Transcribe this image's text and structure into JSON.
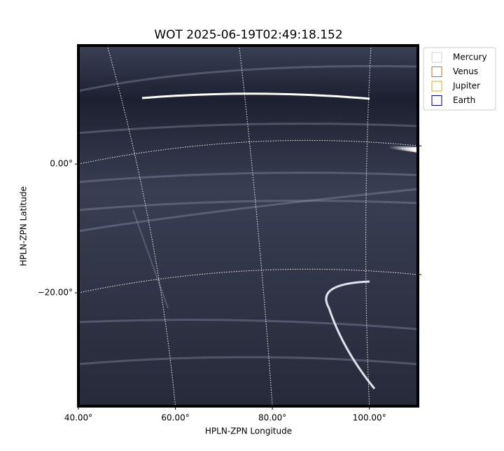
{
  "chart_data": {
    "type": "image",
    "title": "WOT 2025-06-19T02:49:18.152",
    "xlabel": "HPLN-ZPN Longitude",
    "ylabel": "HPLN-ZPN Latitude",
    "xlim": [
      40,
      110
    ],
    "ylim": [
      -37.6,
      18.4
    ],
    "xticks": [
      {
        "value": 40,
        "label": "40.00°"
      },
      {
        "value": 60,
        "label": "60.00°"
      },
      {
        "value": 80,
        "label": "80.00°"
      },
      {
        "value": 100,
        "label": "100.00°"
      }
    ],
    "yticks": [
      {
        "value": 0,
        "label": "0.00°"
      },
      {
        "value": -20,
        "label": "−20.00°"
      }
    ],
    "grid": true,
    "legend": "upper right outside",
    "series": [
      {
        "name": "Mercury",
        "color": "#d3d3d3"
      },
      {
        "name": "Venus",
        "color": "#d2691e"
      },
      {
        "name": "Jupiter",
        "color": "#e6a817"
      },
      {
        "name": "Earth",
        "color": "#00007f"
      }
    ]
  }
}
